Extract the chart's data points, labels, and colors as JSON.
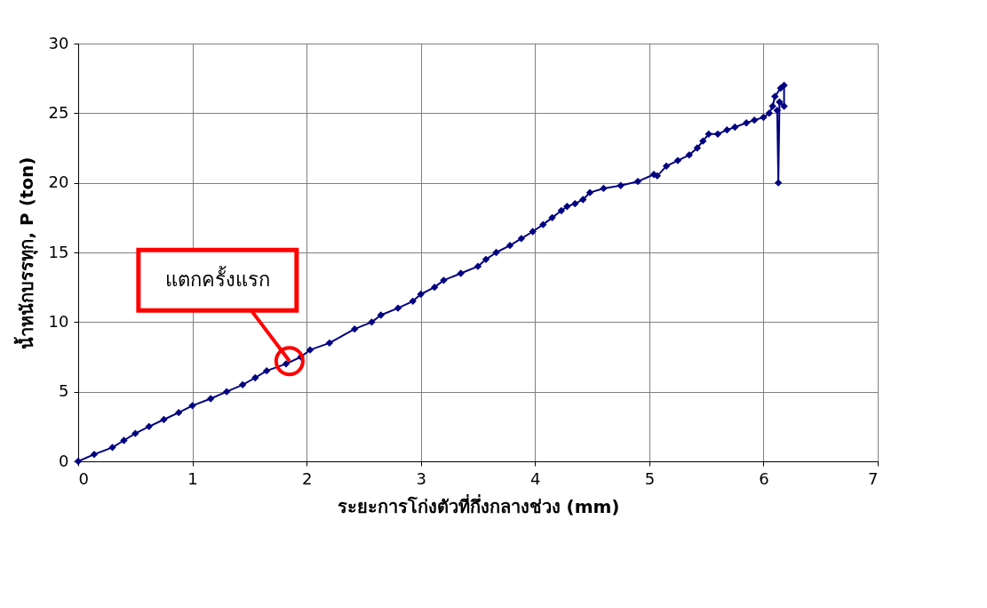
{
  "chart_data": {
    "type": "line",
    "xlabel": "ระยะการโก่งตัวที่กึ่งกลางช่วง (mm)",
    "ylabel": "น้ำหนักบรรทุก, P (ton)",
    "xlim": [
      0,
      7
    ],
    "xticks": [
      0,
      1,
      2,
      3,
      4,
      5,
      6,
      7
    ],
    "ylim": [
      0,
      30
    ],
    "yticks": [
      0,
      5,
      10,
      15,
      20,
      25,
      30
    ],
    "grid": true,
    "marker": "diamond",
    "line_style": "solid",
    "series": [
      {
        "color": "#000080",
        "x": [
          0,
          0.14,
          0.3,
          0.4,
          0.5,
          0.62,
          0.75,
          0.88,
          1.0,
          1.16,
          1.3,
          1.44,
          1.55,
          1.65,
          1.82,
          1.95,
          2.03,
          2.2,
          2.42,
          2.57,
          2.65,
          2.8,
          2.93,
          3.0,
          3.12,
          3.2,
          3.35,
          3.5,
          3.57,
          3.66,
          3.78,
          3.88,
          3.98,
          4.07,
          4.15,
          4.23,
          4.28,
          4.35,
          4.42,
          4.48,
          4.6,
          4.75,
          4.9,
          5.04,
          5.07,
          5.15,
          5.25,
          5.35,
          5.42,
          5.47,
          5.52,
          5.6,
          5.68,
          5.75,
          5.85,
          5.92,
          6.0,
          6.05,
          6.08,
          6.1,
          6.15,
          6.18,
          6.18,
          6.14,
          6.13,
          6.12
        ],
        "values": [
          0,
          0.5,
          1.0,
          1.5,
          2.0,
          2.5,
          3.0,
          3.5,
          4.0,
          4.5,
          5.0,
          5.5,
          6.0,
          6.5,
          7.0,
          7.5,
          8.0,
          8.5,
          9.5,
          10.0,
          10.5,
          11.0,
          11.5,
          12.0,
          12.5,
          13.0,
          13.5,
          14.0,
          14.5,
          15.0,
          15.5,
          16.0,
          16.5,
          17.0,
          17.5,
          18.0,
          18.3,
          18.5,
          18.8,
          19.3,
          19.6,
          19.8,
          20.1,
          20.6,
          20.5,
          21.2,
          21.6,
          22.0,
          22.5,
          23.0,
          23.5,
          23.5,
          23.8,
          24.0,
          24.3,
          24.5,
          24.7,
          25.0,
          25.5,
          26.2,
          26.8,
          27.0,
          25.5,
          25.8,
          20.0,
          25.2
        ]
      }
    ],
    "annotations": [
      {
        "text": "แตกครั้งแรก",
        "x": 1.85,
        "y": 7.2
      }
    ]
  }
}
